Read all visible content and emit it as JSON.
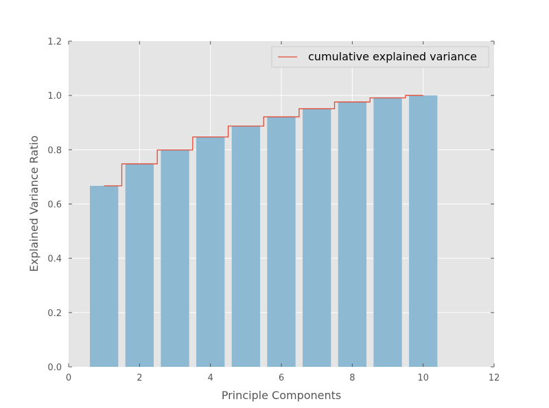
{
  "chart_data": {
    "type": "bar",
    "xlabel": "Principle Components",
    "ylabel": "Explained Variance Ratio",
    "xlim": [
      0,
      12
    ],
    "ylim": [
      0,
      1.2
    ],
    "xticks": [
      "0",
      "2",
      "4",
      "6",
      "8",
      "10",
      "12"
    ],
    "yticks": [
      "0.0",
      "0.2",
      "0.4",
      "0.6",
      "0.8",
      "1.0",
      "1.2"
    ],
    "grid": true,
    "legend_position": "top-right",
    "bars": {
      "x": [
        1,
        2,
        3,
        4,
        5,
        6,
        7,
        8,
        9,
        10
      ],
      "values": [
        0.667,
        0.748,
        0.799,
        0.847,
        0.887,
        0.921,
        0.951,
        0.976,
        0.991,
        1.0
      ],
      "color": "#8db9d3"
    },
    "series": [
      {
        "name": "cumulative explained variance",
        "type": "step",
        "x": [
          1,
          2,
          3,
          4,
          5,
          6,
          7,
          8,
          9,
          10
        ],
        "values": [
          0.667,
          0.748,
          0.799,
          0.847,
          0.887,
          0.921,
          0.951,
          0.976,
          0.991,
          1.0
        ],
        "color": "#e24a33"
      }
    ],
    "colors": {
      "background": "#e5e5e5",
      "grid": "#ffffff"
    }
  }
}
